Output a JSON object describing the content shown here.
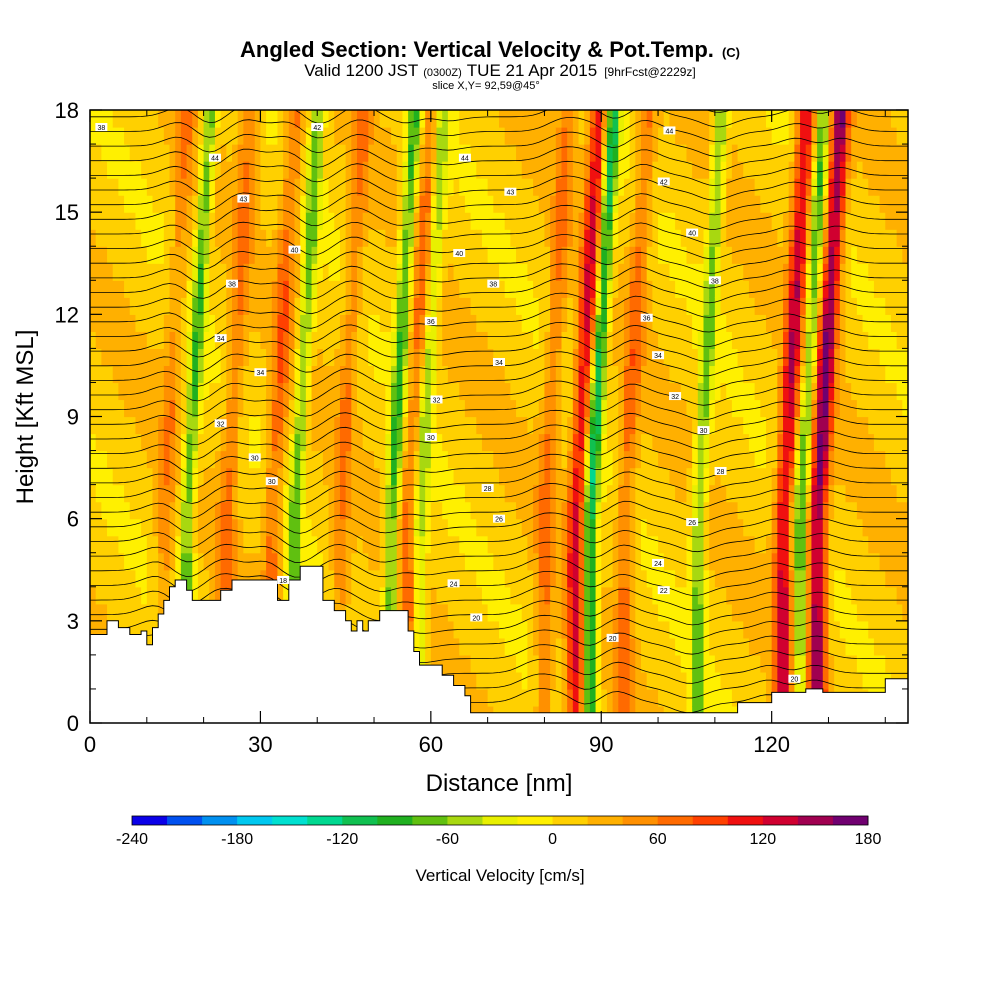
{
  "chart_data": {
    "type": "heatmap",
    "title": "Angled Section: Vertical Velocity & Pot.Temp.",
    "title_unit": "(C)",
    "subtitle_valid": "Valid 1200 JST",
    "subtitle_utc": "(0300Z)",
    "subtitle_date": "TUE 21 Apr 2015",
    "subtitle_fcst": "[9hrFcst@2229z]",
    "slice_label": "slice X,Y= 92,59@45°",
    "xlabel": "Distance [nm]",
    "ylabel": "Height [Kft MSL]",
    "xlim": [
      0,
      144
    ],
    "ylim": [
      0,
      18
    ],
    "x_ticks": [
      "0",
      "30",
      "60",
      "90",
      "120"
    ],
    "y_ticks": [
      "0",
      "3",
      "6",
      "9",
      "12",
      "15",
      "18"
    ],
    "x_tick_values": [
      0,
      30,
      60,
      90,
      120
    ],
    "y_tick_values": [
      0,
      3,
      6,
      9,
      12,
      15,
      18
    ],
    "colorbar": {
      "label": "Vertical Velocity [cm/s]",
      "tick_labels": [
        "-240",
        "-180",
        "-120",
        "-60",
        "0",
        "60",
        "120",
        "180"
      ],
      "tick_values": [
        -240,
        -180,
        -120,
        -60,
        0,
        60,
        120,
        180
      ],
      "levels": [
        -240,
        -220,
        -200,
        -180,
        -160,
        -140,
        -120,
        -100,
        -80,
        -60,
        -40,
        -20,
        0,
        20,
        40,
        60,
        80,
        100,
        120,
        140,
        160,
        180
      ],
      "colors": [
        "#0a00e8",
        "#0050f0",
        "#0090f0",
        "#00c8f0",
        "#00e0d0",
        "#00d890",
        "#10c050",
        "#20b020",
        "#60c010",
        "#a8d810",
        "#e8f000",
        "#fff000",
        "#ffd000",
        "#ffb000",
        "#ff9000",
        "#ff6a00",
        "#ff4000",
        "#f01010",
        "#d00030",
        "#a00050",
        "#700070"
      ]
    },
    "updrafts": [
      {
        "x": 13,
        "amp": 40
      },
      {
        "x": 24,
        "amp": 50
      },
      {
        "x": 32,
        "amp": 60
      },
      {
        "x": 44,
        "amp": 45
      },
      {
        "x": 56,
        "amp": 55
      },
      {
        "x": 80,
        "amp": 50
      },
      {
        "x": 85.5,
        "amp": 110
      },
      {
        "x": 94,
        "amp": 55
      },
      {
        "x": 122,
        "amp": 120
      },
      {
        "x": 128,
        "amp": 150
      }
    ],
    "downdrafts": [
      {
        "x": 17,
        "amp": -90
      },
      {
        "x": 36,
        "amp": -80
      },
      {
        "x": 53,
        "amp": -100
      },
      {
        "x": 58,
        "amp": -70
      },
      {
        "x": 88,
        "amp": -130
      },
      {
        "x": 107,
        "amp": -80
      },
      {
        "x": 125,
        "amp": -90
      }
    ],
    "terrain": [
      [
        0,
        2.6
      ],
      [
        3,
        2.6
      ],
      [
        3,
        3
      ],
      [
        5,
        3
      ],
      [
        5,
        2.8
      ],
      [
        7,
        2.8
      ],
      [
        7,
        2.6
      ],
      [
        9,
        2.6
      ],
      [
        9,
        2.7
      ],
      [
        10,
        2.7
      ],
      [
        10,
        2.3
      ],
      [
        11,
        2.3
      ],
      [
        11,
        2.8
      ],
      [
        12,
        2.8
      ],
      [
        12,
        3.2
      ],
      [
        13,
        3.2
      ],
      [
        13,
        3.6
      ],
      [
        14,
        3.6
      ],
      [
        14,
        4
      ],
      [
        15,
        4
      ],
      [
        15,
        4.2
      ],
      [
        17,
        4.2
      ],
      [
        17,
        3.9
      ],
      [
        18,
        3.9
      ],
      [
        18,
        3.6
      ],
      [
        23,
        3.6
      ],
      [
        23,
        3.9
      ],
      [
        25,
        3.9
      ],
      [
        25,
        4.2
      ],
      [
        33,
        4.2
      ],
      [
        33,
        3.6
      ],
      [
        35,
        3.6
      ],
      [
        35,
        4.2
      ],
      [
        37,
        4.2
      ],
      [
        37,
        4.6
      ],
      [
        41,
        4.6
      ],
      [
        41,
        3.6
      ],
      [
        43,
        3.6
      ],
      [
        43,
        3.3
      ],
      [
        45,
        3.3
      ],
      [
        45,
        3
      ],
      [
        46,
        3
      ],
      [
        46,
        2.7
      ],
      [
        47,
        2.7
      ],
      [
        47,
        3
      ],
      [
        48,
        3
      ],
      [
        48,
        2.7
      ],
      [
        49,
        2.7
      ],
      [
        49,
        3
      ],
      [
        51,
        3
      ],
      [
        51,
        3.3
      ],
      [
        56,
        3.3
      ],
      [
        56,
        2.7
      ],
      [
        57,
        2.7
      ],
      [
        57,
        2.1
      ],
      [
        58,
        2.1
      ],
      [
        58,
        1.7
      ],
      [
        62,
        1.7
      ],
      [
        62,
        1.4
      ],
      [
        64,
        1.4
      ],
      [
        64,
        1.1
      ],
      [
        66,
        1.1
      ],
      [
        66,
        0.8
      ],
      [
        67,
        0.8
      ],
      [
        67,
        0.3
      ],
      [
        114,
        0.3
      ],
      [
        114,
        0.6
      ],
      [
        120,
        0.6
      ],
      [
        120,
        0.9
      ],
      [
        126,
        0.9
      ],
      [
        126,
        1.0
      ],
      [
        129,
        1.0
      ],
      [
        129,
        0.9
      ],
      [
        140,
        0.9
      ],
      [
        140,
        1.3
      ],
      [
        144,
        1.3
      ],
      [
        144,
        0
      ]
    ],
    "theta_contour_labels": [
      {
        "x": 2,
        "y": 17.5,
        "text": "38"
      },
      {
        "x": 40,
        "y": 17.5,
        "text": "42"
      },
      {
        "x": 22,
        "y": 16.6,
        "text": "44"
      },
      {
        "x": 66,
        "y": 16.6,
        "text": "44"
      },
      {
        "x": 102,
        "y": 17.4,
        "text": "44"
      },
      {
        "x": 27,
        "y": 15.4,
        "text": "43"
      },
      {
        "x": 74,
        "y": 15.6,
        "text": "43"
      },
      {
        "x": 101,
        "y": 15.9,
        "text": "42"
      },
      {
        "x": 36,
        "y": 13.9,
        "text": "40"
      },
      {
        "x": 65,
        "y": 13.8,
        "text": "40"
      },
      {
        "x": 106,
        "y": 14.4,
        "text": "40"
      },
      {
        "x": 25,
        "y": 12.9,
        "text": "38"
      },
      {
        "x": 71,
        "y": 12.9,
        "text": "38"
      },
      {
        "x": 110,
        "y": 13.0,
        "text": "38"
      },
      {
        "x": 60,
        "y": 11.8,
        "text": "36"
      },
      {
        "x": 98,
        "y": 11.9,
        "text": "36"
      },
      {
        "x": 23,
        "y": 11.3,
        "text": "34"
      },
      {
        "x": 100,
        "y": 10.8,
        "text": "34"
      },
      {
        "x": 30,
        "y": 10.3,
        "text": "34"
      },
      {
        "x": 72,
        "y": 10.6,
        "text": "34"
      },
      {
        "x": 103,
        "y": 9.6,
        "text": "32"
      },
      {
        "x": 61,
        "y": 9.5,
        "text": "32"
      },
      {
        "x": 23,
        "y": 8.8,
        "text": "32"
      },
      {
        "x": 108,
        "y": 8.6,
        "text": "30"
      },
      {
        "x": 60,
        "y": 8.4,
        "text": "30"
      },
      {
        "x": 29,
        "y": 7.8,
        "text": "30"
      },
      {
        "x": 32,
        "y": 7.1,
        "text": "30"
      },
      {
        "x": 111,
        "y": 7.4,
        "text": "28"
      },
      {
        "x": 70,
        "y": 6.9,
        "text": "28"
      },
      {
        "x": 106,
        "y": 5.9,
        "text": "26"
      },
      {
        "x": 72,
        "y": 6.0,
        "text": "26"
      },
      {
        "x": 100,
        "y": 4.7,
        "text": "24"
      },
      {
        "x": 64,
        "y": 4.1,
        "text": "24"
      },
      {
        "x": 101,
        "y": 3.9,
        "text": "22"
      },
      {
        "x": 34,
        "y": 4.2,
        "text": "18"
      },
      {
        "x": 68,
        "y": 3.1,
        "text": "20"
      },
      {
        "x": 92,
        "y": 2.5,
        "text": "20"
      },
      {
        "x": 124,
        "y": 1.3,
        "text": "20"
      }
    ]
  }
}
